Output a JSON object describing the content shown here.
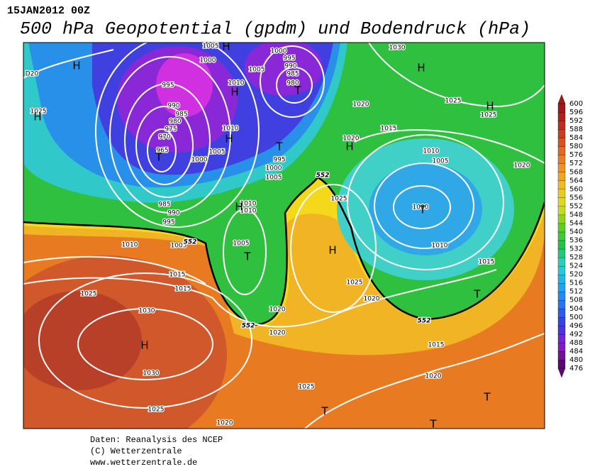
{
  "header": {
    "date": "15JAN2012 00Z",
    "title": "500 hPa Geopotential (gpdm) und Bodendruck (hPa)"
  },
  "colorbar": {
    "labels": [
      "476",
      "480",
      "484",
      "488",
      "492",
      "496",
      "500",
      "504",
      "508",
      "512",
      "516",
      "520",
      "524",
      "528",
      "532",
      "536",
      "540",
      "544",
      "548",
      "552",
      "556",
      "560",
      "564",
      "568",
      "572",
      "576",
      "580",
      "584",
      "588",
      "592",
      "596",
      "600"
    ]
  },
  "map": {
    "isobar_labels": [
      "1005",
      "1000",
      "1000",
      "995",
      "990",
      "985",
      "980",
      "1005",
      "D20",
      "995",
      "1010",
      "990",
      "985",
      "980",
      "975",
      "970",
      "965",
      "1000",
      "1005",
      "1010",
      "995",
      "1000",
      "1005",
      "1025",
      "1020",
      "1025",
      "1025",
      "1030",
      "1015",
      "1020",
      "1010",
      "1005",
      "1000",
      "1020",
      "985",
      "990",
      "995",
      "1010",
      "1010",
      "1025",
      "1005",
      "1010",
      "1005",
      "1010",
      "1015",
      "1015",
      "1020",
      "1025",
      "1025",
      "1020",
      "1015",
      "1020",
      "1030",
      "1015",
      "1030",
      "1020",
      "1025",
      "1025",
      "1020"
    ],
    "contour_labels": [
      "552",
      "552",
      "552",
      "552"
    ],
    "centers": [
      "H",
      "H",
      "H",
      "H",
      "H",
      "H",
      "H",
      "H",
      "H",
      "H",
      "H",
      "T",
      "T",
      "T",
      "T",
      "T",
      "T",
      "T",
      "T",
      "T"
    ]
  },
  "footer": {
    "lines": [
      "Daten: Reanalysis des NCEP",
      "(C) Wetterzentrale",
      "www.wetterzentrale.de"
    ]
  }
}
